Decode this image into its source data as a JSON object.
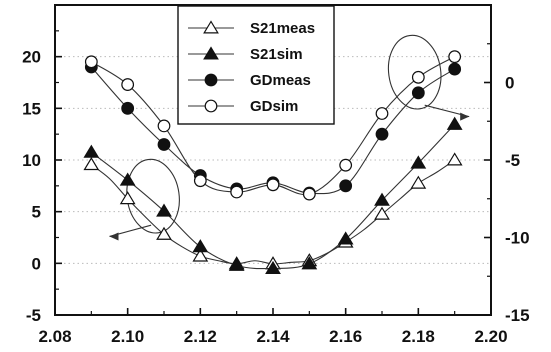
{
  "chart_data": {
    "type": "line",
    "title": "",
    "xlabel": "",
    "ylabel_left": "",
    "ylabel_right": "",
    "xlim": [
      2.08,
      2.2
    ],
    "ylim_left": [
      -5,
      25
    ],
    "ylim_right": [
      -15,
      5
    ],
    "x_ticks": [
      "2.08",
      "2.10",
      "2.12",
      "2.14",
      "2.16",
      "2.18",
      "2.20"
    ],
    "y_left_ticks": [
      "-5",
      "0",
      "5",
      "10",
      "15",
      "20"
    ],
    "y_right_ticks": [
      "-15",
      "-10",
      "-5",
      "0"
    ],
    "grid": "horizontal dotted",
    "legend_position": "top-center",
    "colors": {
      "line": "#333333",
      "marker": "#111111",
      "frame": "#111111",
      "annotation": "#333333"
    },
    "series": [
      {
        "name": "S21meas",
        "axis": "right",
        "marker": "open-triangle",
        "x": [
          2.09,
          2.095,
          2.1,
          2.105,
          2.11,
          2.115,
          2.12,
          2.125,
          2.13,
          2.135,
          2.14,
          2.145,
          2.15,
          2.155,
          2.16,
          2.165,
          2.17,
          2.175,
          2.18,
          2.185,
          2.19
        ],
        "values": [
          -5.3,
          -6.2,
          -7.5,
          -8.7,
          -9.8,
          -10.6,
          -11.2,
          -11.5,
          -11.7,
          -11.5,
          -11.7,
          -11.6,
          -11.5,
          -11.0,
          -10.3,
          -9.5,
          -8.5,
          -7.5,
          -6.5,
          -5.8,
          -5.0
        ]
      },
      {
        "name": "S21sim",
        "axis": "right",
        "marker": "filled-triangle",
        "x": [
          2.09,
          2.1,
          2.11,
          2.12,
          2.13,
          2.14,
          2.15,
          2.16,
          2.17,
          2.18,
          2.19
        ],
        "values": [
          -4.5,
          -6.3,
          -8.3,
          -10.6,
          -11.8,
          -12.0,
          -11.7,
          -10.1,
          -7.6,
          -5.2,
          -2.7
        ]
      },
      {
        "name": "GDmeas",
        "axis": "left",
        "marker": "filled-circle",
        "x": [
          2.09,
          2.1,
          2.11,
          2.12,
          2.13,
          2.14,
          2.15,
          2.16,
          2.17,
          2.18,
          2.19
        ],
        "values": [
          19.0,
          15.0,
          11.5,
          8.5,
          7.2,
          7.8,
          6.8,
          7.5,
          12.5,
          16.5,
          18.8
        ]
      },
      {
        "name": "GDsim",
        "axis": "left",
        "marker": "open-circle",
        "x": [
          2.09,
          2.1,
          2.11,
          2.12,
          2.13,
          2.14,
          2.15,
          2.16,
          2.17,
          2.18,
          2.19
        ],
        "values": [
          19.5,
          17.3,
          13.3,
          8.0,
          6.9,
          7.6,
          6.7,
          9.5,
          14.5,
          18.0,
          20.0
        ]
      }
    ],
    "annotations": [
      {
        "type": "ellipse",
        "x": 2.107,
        "y": 6.5,
        "axis": "left",
        "arrow_to_x": 2.095,
        "arrow_to_y": 2.6,
        "arrow_direction": "left"
      },
      {
        "type": "ellipse",
        "x": 2.179,
        "y": 18.5,
        "axis": "left",
        "arrow_to_x": 2.194,
        "arrow_to_y": 14.2,
        "arrow_direction": "right"
      }
    ]
  }
}
